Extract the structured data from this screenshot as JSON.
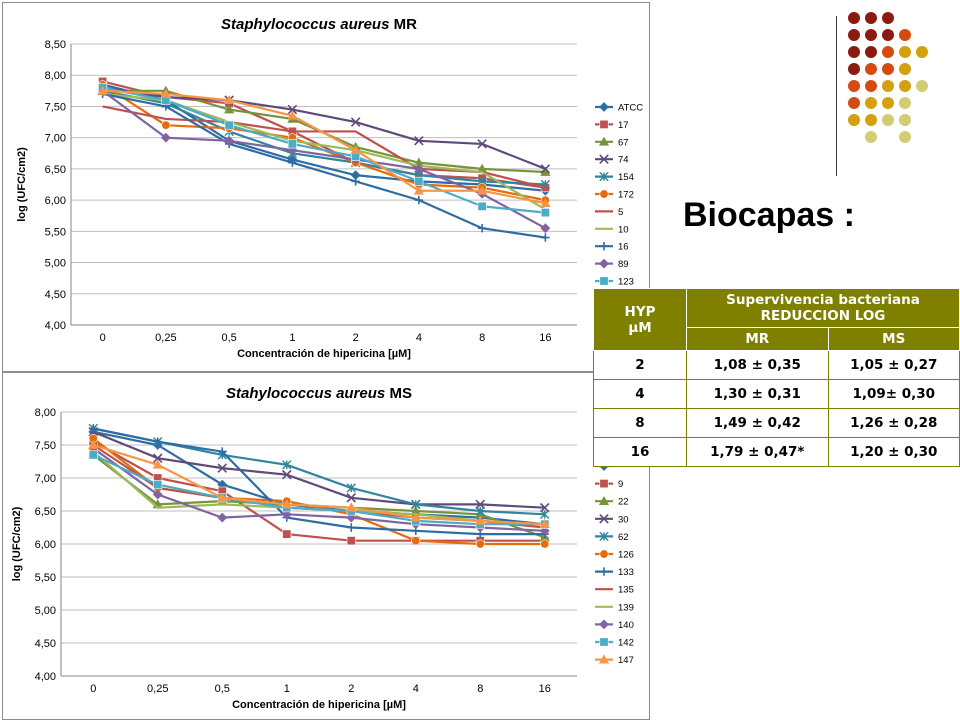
{
  "slide": {
    "title": "Biocapas :",
    "colors": {
      "line": "#3a3a3a",
      "table_header": "#7f7f00"
    },
    "dots": [
      [
        "#8b1a10",
        "#8b1a10",
        "#8b1a10",
        null
      ],
      [
        "#8b1a10",
        "#8b1a10",
        "#8b1a10",
        "#d44b11"
      ],
      [
        "#8b1a10",
        "#8b1a10",
        "#d44b11",
        "#d4a00d",
        "#d4a00d"
      ],
      [
        "#8b1a10",
        "#d44b11",
        "#d44b11",
        "#d4a00d"
      ],
      [
        "#d44b11",
        "#d44b11",
        "#d4a00d",
        "#d4a00d",
        "#d2cc72"
      ],
      [
        "#d44b11",
        "#d4a00d",
        "#d4a00d",
        "#d2cc72"
      ],
      [
        "#d4a00d",
        "#d4a00d",
        "#d2cc72",
        "#d2cc72"
      ],
      [
        null,
        "#d2cc72",
        null,
        "#d2cc72"
      ]
    ]
  },
  "table": {
    "header_col1": [
      "HYP",
      "µM"
    ],
    "header_span1": "Supervivencia bacteriana",
    "header_span2": "REDUCCION LOG",
    "sub_headers": [
      "MR",
      "MS"
    ],
    "rows": [
      [
        "2",
        "1,08 ± 0,35",
        "1,05 ± 0,27"
      ],
      [
        "4",
        "1,30 ± 0,31",
        "1,09± 0,30"
      ],
      [
        "8",
        "1,49 ± 0,42",
        "1,26 ± 0,28"
      ],
      [
        "16",
        "1,79 ± 0,47*",
        "1,20 ± 0,30"
      ]
    ]
  },
  "chart_data": [
    {
      "type": "line",
      "title_italic": "Staphylococcus aureus",
      "title_rest": " MR",
      "xlabel": "Concentración de hipericina [µM]",
      "ylabel": "log (UFC/cm2)",
      "categories": [
        "0",
        "0,25",
        "0,5",
        "1",
        "2",
        "4",
        "8",
        "16"
      ],
      "ylim": [
        4.0,
        8.5
      ],
      "yticks": [
        "4,00",
        "4,50",
        "5,00",
        "5,50",
        "6,00",
        "6,50",
        "7,00",
        "7,50",
        "8,00",
        "8,50"
      ],
      "grid": true,
      "legend": "right",
      "series": [
        {
          "name": "ATCC",
          "color": "#2e6ca4",
          "marker": "diamond",
          "values": [
            7.85,
            7.6,
            6.95,
            6.65,
            6.4,
            6.3,
            6.25,
            6.15
          ]
        },
        {
          "name": "17",
          "color": "#c0504d",
          "marker": "square",
          "values": [
            7.9,
            7.65,
            7.55,
            7.1,
            6.6,
            6.4,
            6.35,
            6.2
          ]
        },
        {
          "name": "67",
          "color": "#77933c",
          "marker": "triangle",
          "values": [
            7.75,
            7.75,
            7.45,
            7.3,
            6.85,
            6.6,
            6.5,
            6.45
          ]
        },
        {
          "name": "74",
          "color": "#604a7b",
          "marker": "x",
          "values": [
            7.8,
            7.65,
            7.6,
            7.45,
            7.25,
            6.95,
            6.9,
            6.5
          ]
        },
        {
          "name": "154",
          "color": "#31859c",
          "marker": "star",
          "values": [
            7.75,
            7.55,
            7.1,
            6.75,
            6.6,
            6.4,
            6.3,
            6.25
          ]
        },
        {
          "name": "172",
          "color": "#e46c0a",
          "marker": "circle",
          "values": [
            7.85,
            7.2,
            7.15,
            7.0,
            6.6,
            6.25,
            6.2,
            6.0
          ]
        },
        {
          "name": "5",
          "color": "#c0504d",
          "marker": "none",
          "values": [
            7.5,
            7.3,
            7.25,
            7.1,
            7.1,
            6.5,
            6.45,
            6.2
          ]
        },
        {
          "name": "10",
          "color": "#9bbb59",
          "marker": "none",
          "values": [
            7.7,
            7.6,
            7.25,
            6.95,
            6.8,
            6.55,
            6.45,
            5.85
          ]
        },
        {
          "name": "16",
          "color": "#2e6ca4",
          "marker": "plus",
          "values": [
            7.7,
            7.5,
            6.9,
            6.6,
            6.3,
            6.0,
            5.55,
            5.4
          ]
        },
        {
          "name": "89",
          "color": "#8064a2",
          "marker": "diamond",
          "values": [
            7.75,
            7.0,
            6.95,
            6.8,
            6.65,
            6.5,
            6.1,
            5.55
          ]
        },
        {
          "name": "123",
          "color": "#4bacc6",
          "marker": "square",
          "values": [
            7.8,
            7.6,
            7.2,
            6.9,
            6.7,
            6.3,
            5.9,
            5.8
          ]
        },
        {
          "name": "",
          "color": "#f79646",
          "marker": "triangle",
          "values": [
            7.75,
            7.7,
            7.6,
            7.35,
            6.8,
            6.15,
            6.15,
            5.95
          ]
        }
      ]
    },
    {
      "type": "line",
      "title_italic": "Stahylococcus aureus",
      "title_rest": " MS",
      "xlabel": "Concentración de hipericina [µM]",
      "ylabel": "log (UFC/cm2)",
      "categories": [
        "0",
        "0,25",
        "0,5",
        "1",
        "2",
        "4",
        "8",
        "16"
      ],
      "ylim": [
        4.0,
        8.0
      ],
      "yticks": [
        "4,00",
        "4,50",
        "5,00",
        "5,50",
        "6,00",
        "6,50",
        "7,00",
        "7,50",
        "8,00"
      ],
      "grid": true,
      "legend": "right",
      "series": [
        {
          "name": "",
          "color": "#2e6ca4",
          "marker": "diamond",
          "values": [
            7.7,
            7.5,
            6.9,
            6.6,
            6.5,
            6.45,
            6.4,
            6.3
          ]
        },
        {
          "name": "9",
          "color": "#c0504d",
          "marker": "square",
          "values": [
            7.55,
            7.0,
            6.8,
            6.15,
            6.05,
            6.05,
            6.05,
            6.05
          ]
        },
        {
          "name": "22",
          "color": "#77933c",
          "marker": "triangle",
          "values": [
            7.35,
            6.6,
            6.65,
            6.6,
            6.55,
            6.5,
            6.45,
            6.1
          ]
        },
        {
          "name": "30",
          "color": "#604a7b",
          "marker": "x",
          "values": [
            7.7,
            7.3,
            7.15,
            7.05,
            6.7,
            6.6,
            6.6,
            6.55
          ]
        },
        {
          "name": "62",
          "color": "#31859c",
          "marker": "star",
          "values": [
            7.75,
            7.55,
            7.35,
            7.2,
            6.85,
            6.6,
            6.5,
            6.45
          ]
        },
        {
          "name": "126",
          "color": "#e46c0a",
          "marker": "circle",
          "values": [
            7.6,
            6.85,
            6.7,
            6.65,
            6.45,
            6.05,
            6.0,
            6.0
          ]
        },
        {
          "name": "133",
          "color": "#2e6ca4",
          "marker": "plus",
          "values": [
            7.75,
            7.55,
            7.4,
            6.4,
            6.25,
            6.2,
            6.15,
            6.15
          ]
        },
        {
          "name": "135",
          "color": "#c0504d",
          "marker": "none",
          "values": [
            7.5,
            6.85,
            6.7,
            6.55,
            6.5,
            6.4,
            6.35,
            6.25
          ]
        },
        {
          "name": "139",
          "color": "#9bbb59",
          "marker": "none",
          "values": [
            7.4,
            6.55,
            6.6,
            6.55,
            6.5,
            6.45,
            6.35,
            6.3
          ]
        },
        {
          "name": "140",
          "color": "#8064a2",
          "marker": "diamond",
          "values": [
            7.45,
            6.75,
            6.4,
            6.45,
            6.4,
            6.3,
            6.25,
            6.2
          ]
        },
        {
          "name": "142",
          "color": "#4bacc6",
          "marker": "square",
          "values": [
            7.35,
            6.9,
            6.7,
            6.55,
            6.5,
            6.35,
            6.3,
            6.3
          ]
        },
        {
          "name": "147",
          "color": "#f79646",
          "marker": "triangle",
          "values": [
            7.5,
            7.2,
            6.7,
            6.6,
            6.55,
            6.4,
            6.35,
            6.3
          ]
        }
      ]
    }
  ]
}
